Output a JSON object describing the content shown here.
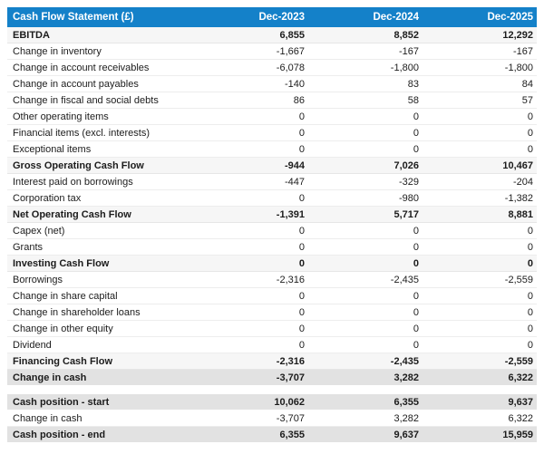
{
  "colors": {
    "header_bg": "#1481c9",
    "header_text": "#ffffff",
    "subtotal_bg": "#f6f6f6",
    "total_bg": "#e2e2e2",
    "body_text": "#1c1c1c"
  },
  "table": {
    "title": "Cash Flow Statement (£)",
    "columns": [
      "Dec-2023",
      "Dec-2024",
      "Dec-2025"
    ],
    "main_rows": [
      {
        "label": "EBITDA",
        "values": [
          "6,855",
          "8,852",
          "12,292"
        ],
        "style": "subtotal"
      },
      {
        "label": "Change in inventory",
        "values": [
          "-1,667",
          "-167",
          "-167"
        ],
        "style": "normal"
      },
      {
        "label": "Change in account receivables",
        "values": [
          "-6,078",
          "-1,800",
          "-1,800"
        ],
        "style": "normal"
      },
      {
        "label": "Change in account payables",
        "values": [
          "-140",
          "83",
          "84"
        ],
        "style": "normal"
      },
      {
        "label": "Change in fiscal and social debts",
        "values": [
          "86",
          "58",
          "57"
        ],
        "style": "normal"
      },
      {
        "label": "Other operating items",
        "values": [
          "0",
          "0",
          "0"
        ],
        "style": "normal"
      },
      {
        "label": "Financial items (excl. interests)",
        "values": [
          "0",
          "0",
          "0"
        ],
        "style": "normal"
      },
      {
        "label": "Exceptional items",
        "values": [
          "0",
          "0",
          "0"
        ],
        "style": "normal"
      },
      {
        "label": "Gross Operating Cash Flow",
        "values": [
          "-944",
          "7,026",
          "10,467"
        ],
        "style": "subtotal"
      },
      {
        "label": "Interest paid on borrowings",
        "values": [
          "-447",
          "-329",
          "-204"
        ],
        "style": "normal"
      },
      {
        "label": "Corporation tax",
        "values": [
          "0",
          "-980",
          "-1,382"
        ],
        "style": "normal"
      },
      {
        "label": "Net Operating Cash Flow",
        "values": [
          "-1,391",
          "5,717",
          "8,881"
        ],
        "style": "subtotal"
      },
      {
        "label": "Capex (net)",
        "values": [
          "0",
          "0",
          "0"
        ],
        "style": "normal"
      },
      {
        "label": "Grants",
        "values": [
          "0",
          "0",
          "0"
        ],
        "style": "normal"
      },
      {
        "label": "Investing Cash Flow",
        "values": [
          "0",
          "0",
          "0"
        ],
        "style": "subtotal"
      },
      {
        "label": "Borrowings",
        "values": [
          "-2,316",
          "-2,435",
          "-2,559"
        ],
        "style": "normal"
      },
      {
        "label": "Change in share capital",
        "values": [
          "0",
          "0",
          "0"
        ],
        "style": "normal"
      },
      {
        "label": "Change in shareholder loans",
        "values": [
          "0",
          "0",
          "0"
        ],
        "style": "normal"
      },
      {
        "label": "Change in other equity",
        "values": [
          "0",
          "0",
          "0"
        ],
        "style": "normal"
      },
      {
        "label": "Dividend",
        "values": [
          "0",
          "0",
          "0"
        ],
        "style": "normal"
      },
      {
        "label": "Financing Cash Flow",
        "values": [
          "-2,316",
          "-2,435",
          "-2,559"
        ],
        "style": "subtotal"
      },
      {
        "label": "Change in cash",
        "values": [
          "-3,707",
          "3,282",
          "6,322"
        ],
        "style": "total"
      }
    ],
    "cash_position_rows": [
      {
        "label": "Cash position - start",
        "values": [
          "10,062",
          "6,355",
          "9,637"
        ],
        "style": "total"
      },
      {
        "label": "Change in cash",
        "values": [
          "-3,707",
          "3,282",
          "6,322"
        ],
        "style": "normal"
      },
      {
        "label": "Cash position - end",
        "values": [
          "6,355",
          "9,637",
          "15,959"
        ],
        "style": "total"
      }
    ]
  }
}
